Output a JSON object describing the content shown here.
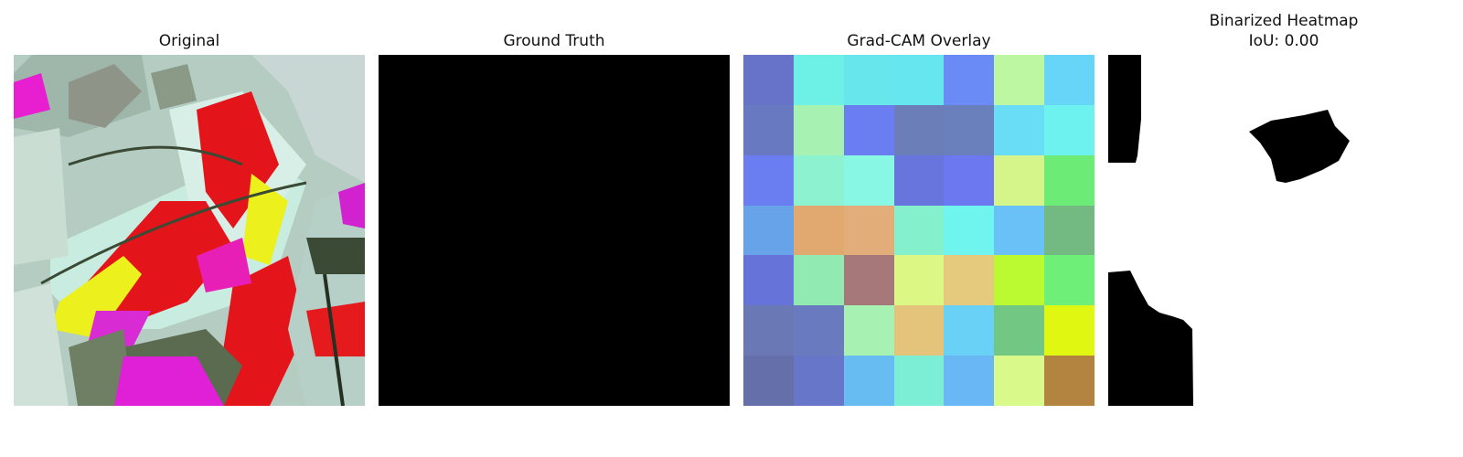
{
  "panels": [
    {
      "title": "Original"
    },
    {
      "title": "Ground Truth"
    },
    {
      "title": "Grad-CAM Overlay"
    },
    {
      "title": "Binarized Heatmap",
      "subtitle": "IoU: 0.00"
    }
  ],
  "gradcam_colors": [
    [
      "#6673c9",
      "#6df0e6",
      "#67e7ec",
      "#66e6ef",
      "#6a8bf6",
      "#bef7a2",
      "#67d5f7"
    ],
    [
      "#6879c1",
      "#a7f2b2",
      "#6a7ef1",
      "#6b7eb7",
      "#6a80bd",
      "#69dcf6",
      "#6ef2f0"
    ],
    [
      "#6a7ef1",
      "#8cf2d0",
      "#88f8e5",
      "#6875dd",
      "#6b78f0",
      "#d5f48a",
      "#6ceb77"
    ],
    [
      "#67a3e8",
      "#e1a86f",
      "#e3ad79",
      "#84f0cc",
      "#70f5ee",
      "#69c1f7",
      "#72b982"
    ],
    [
      "#6673d8",
      "#91eab2",
      "#a7787a",
      "#dcf784",
      "#e5ca7e",
      "#bbf930",
      "#6eef78"
    ],
    [
      "#6a79b6",
      "#6a7abf",
      "#a7f2b2",
      "#e4c47b",
      "#69d1f6",
      "#72c782",
      "#dff711"
    ],
    [
      "#6570aa",
      "#6776c8",
      "#67bcf1",
      "#7deed6",
      "#69b7f4",
      "#daf98b",
      "#b3843f"
    ]
  ]
}
